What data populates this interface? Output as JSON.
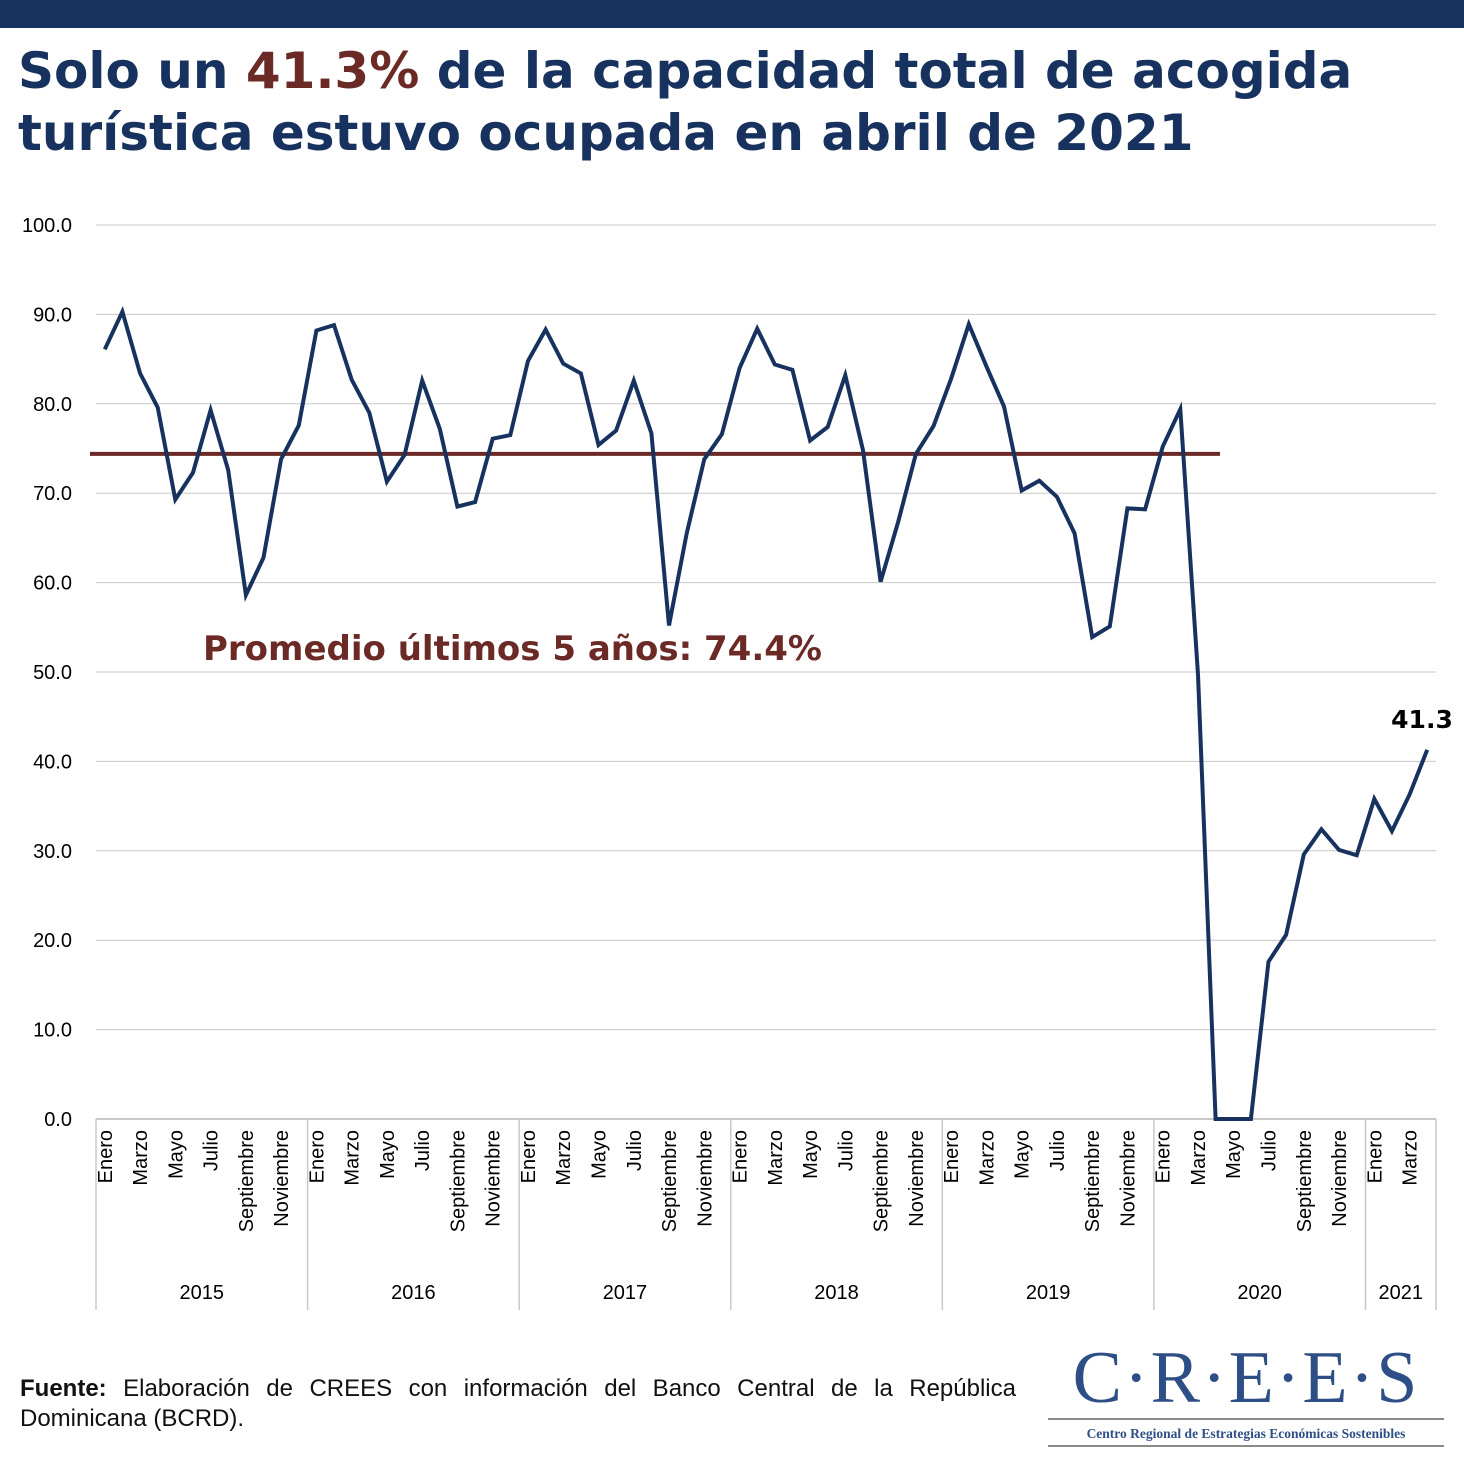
{
  "header": {
    "title_pre": "Solo un ",
    "title_highlight": "41.3%",
    "title_post": " de la capacidad total de acogida turística estuvo ocupada en abril de 2021"
  },
  "colors": {
    "line": "#17325e",
    "average": "#6b2a25",
    "grid": "#c8c8c8",
    "title": "#17325e"
  },
  "chart_data": {
    "type": "line",
    "title": "",
    "xlabel": "",
    "ylabel": "",
    "ylim": [
      0,
      100
    ],
    "yticks": [
      "0.0",
      "10.0",
      "20.0",
      "30.0",
      "40.0",
      "50.0",
      "60.0",
      "70.0",
      "80.0",
      "90.0",
      "100.0"
    ],
    "grid": true,
    "month_labels": [
      "Enero",
      "Marzo",
      "Mayo",
      "Julio",
      "Septiembre",
      "Noviembre"
    ],
    "years": [
      {
        "year": "2015",
        "values": [
          86.1,
          90.3,
          83.4,
          79.6,
          69.3,
          72.3,
          79.3,
          72.6,
          58.6,
          62.8,
          73.8,
          77.6
        ]
      },
      {
        "year": "2016",
        "values": [
          88.2,
          88.8,
          82.7,
          79.0,
          71.3,
          74.3,
          82.6,
          77.2,
          68.5,
          69.0,
          76.1,
          76.5
        ]
      },
      {
        "year": "2017",
        "values": [
          84.8,
          88.3,
          84.5,
          83.4,
          75.4,
          77.0,
          82.6,
          76.7,
          55.2,
          65.5,
          73.8,
          76.6
        ]
      },
      {
        "year": "2018",
        "values": [
          84.0,
          88.4,
          84.4,
          83.8,
          75.9,
          77.4,
          83.2,
          74.8,
          60.1,
          66.8,
          74.4,
          77.5
        ]
      },
      {
        "year": "2019",
        "values": [
          82.8,
          88.9,
          84.2,
          79.7,
          70.3,
          71.4,
          69.6,
          65.5,
          53.9,
          55.1,
          68.3,
          68.2
        ]
      },
      {
        "year": "2020",
        "values": [
          75.2,
          79.4,
          49.7,
          0,
          0,
          0,
          17.6,
          20.6,
          29.6,
          32.4,
          30.1,
          29.5
        ]
      },
      {
        "year": "2021",
        "values": [
          35.8,
          32.2,
          36.3,
          41.3
        ]
      }
    ],
    "average": {
      "value": 74.4,
      "label": "Promedio últimos 5 años: 74.4%"
    },
    "last_point_label": "41.3"
  },
  "footer": {
    "source_label": "Fuente:",
    "source_text": " Elaboración de CREES con información del Banco Central de la República Dominicana (BCRD).",
    "logo_text": "C·R·E·E·S",
    "logo_subtitle": "Centro Regional de Estrategias Económicas Sostenibles"
  }
}
